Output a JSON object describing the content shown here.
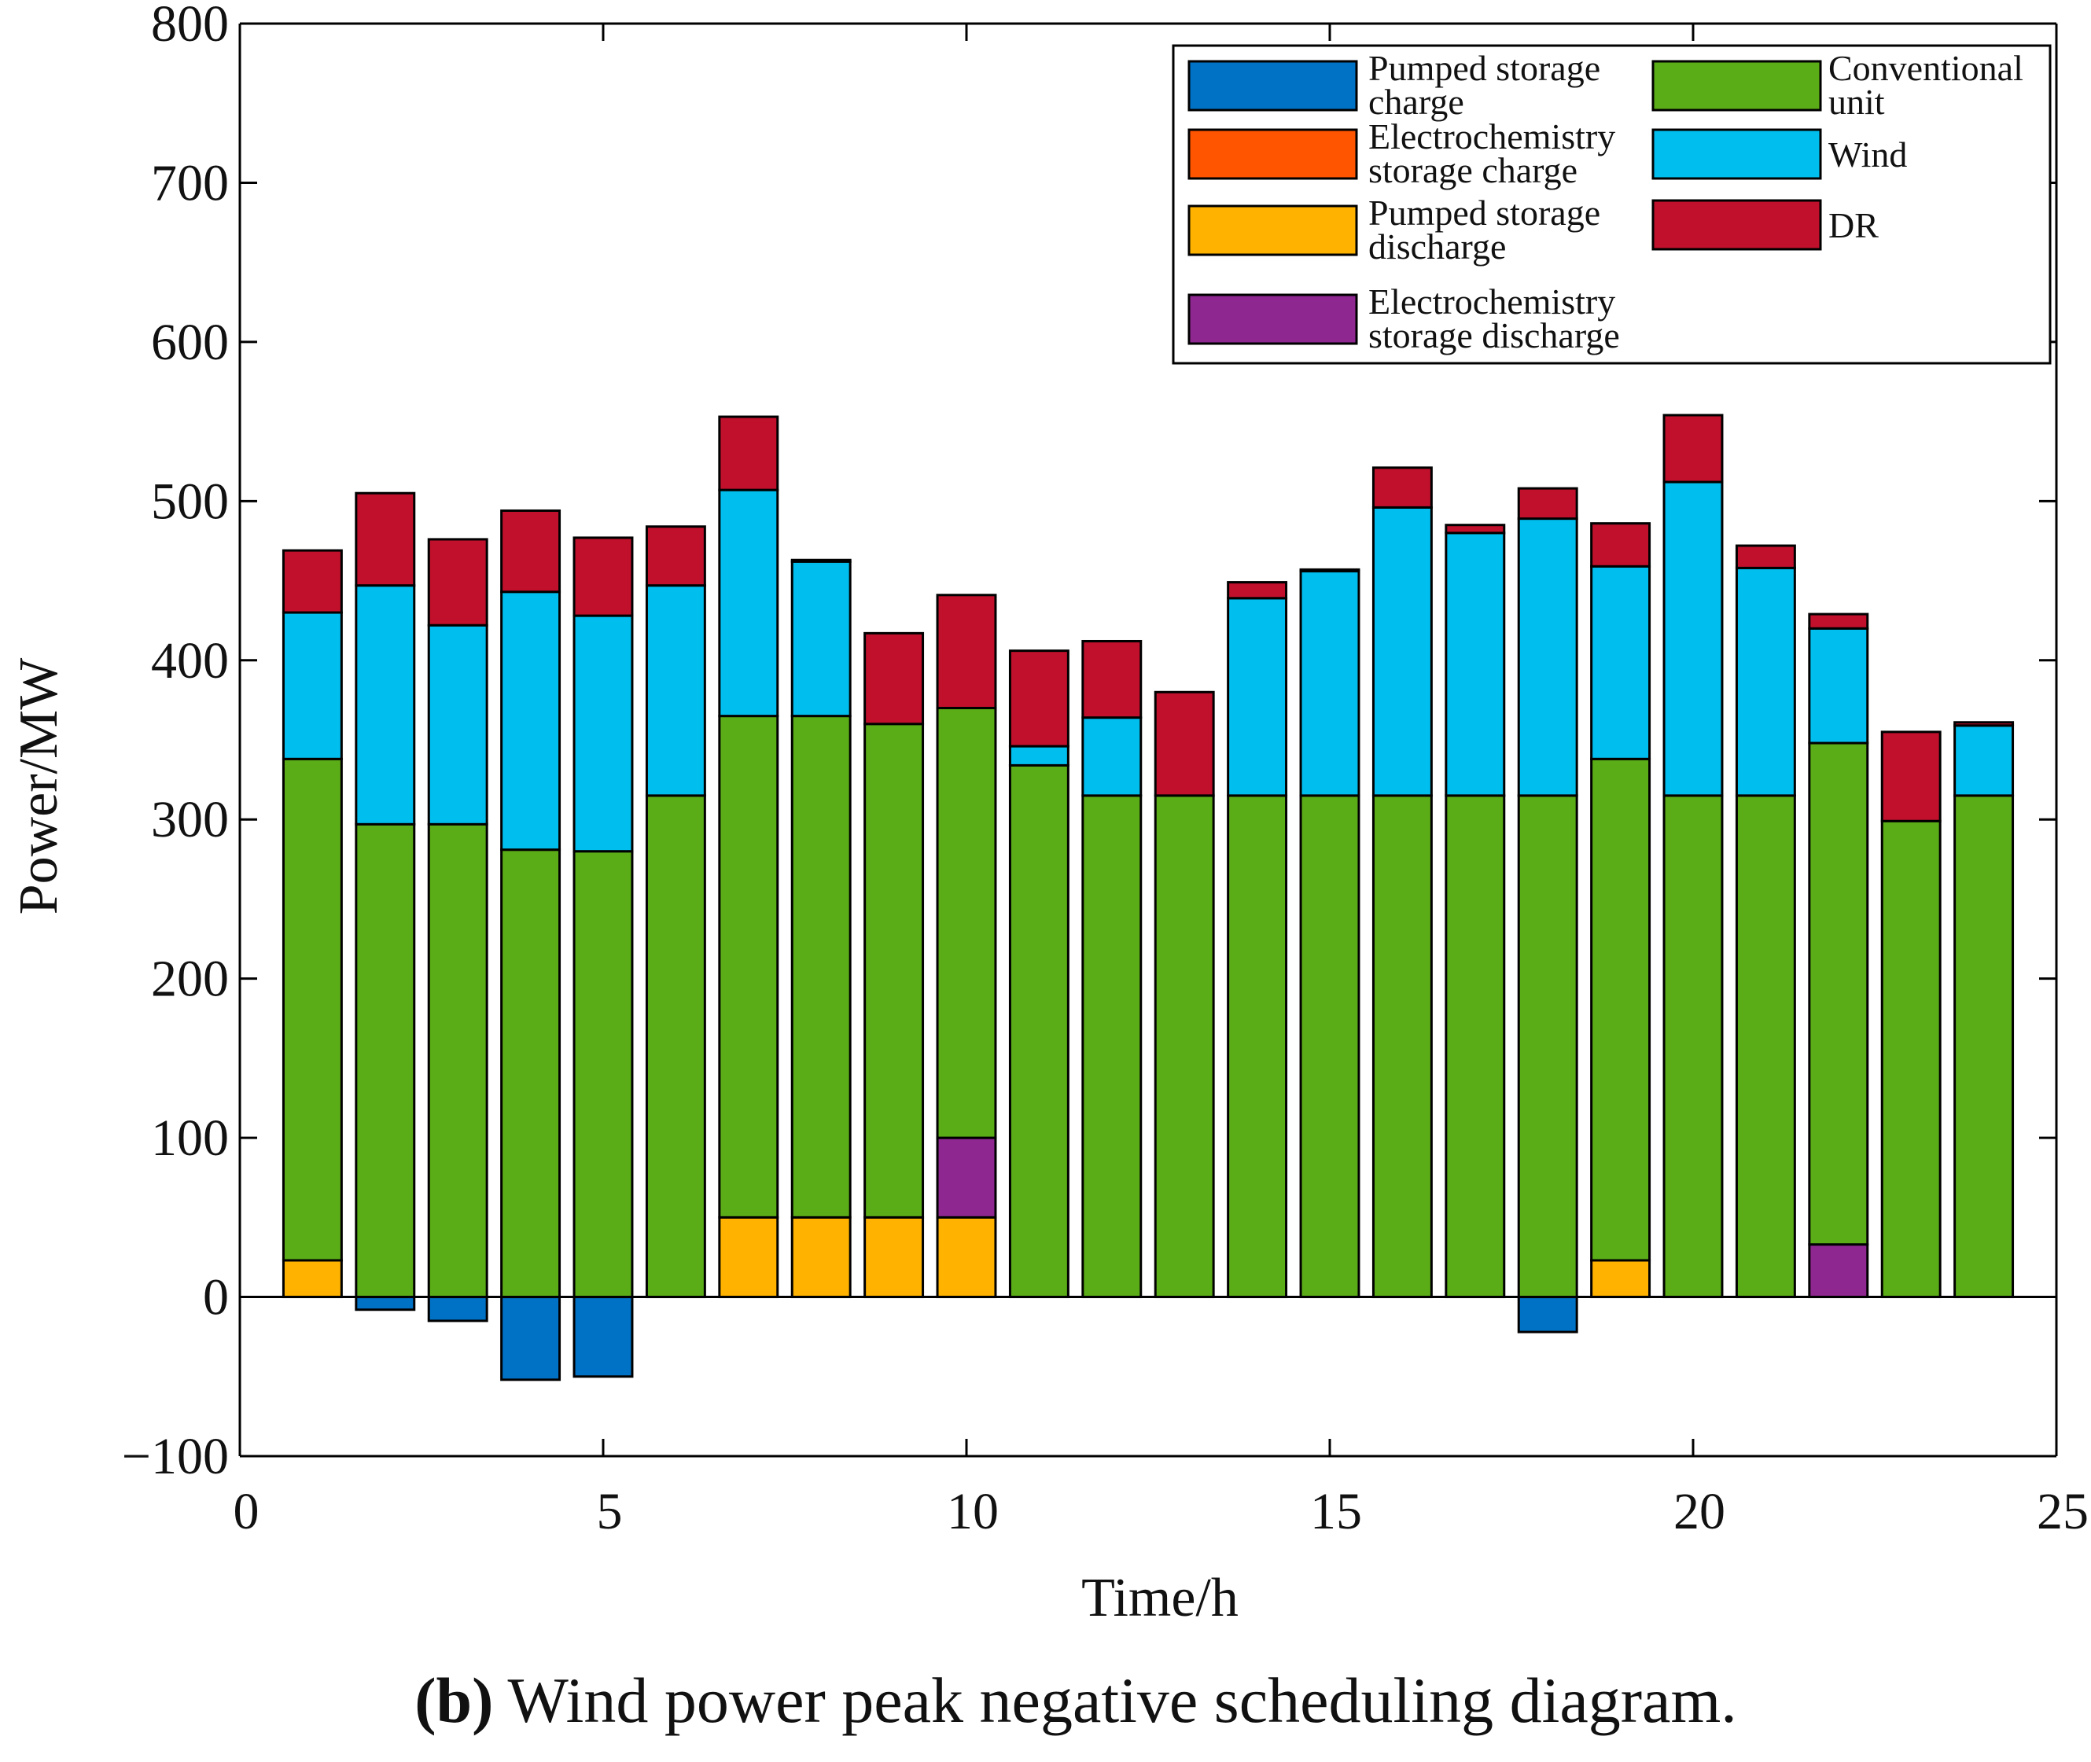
{
  "chart_data": {
    "type": "bar",
    "stacked": true,
    "caption_prefix": "(b)",
    "caption": "Wind power peak negative scheduling diagram.",
    "xlabel": "Time/h",
    "ylabel": "Power/MW",
    "xlim": [
      0,
      25
    ],
    "ylim": [
      -100,
      800
    ],
    "xticks": [
      0,
      5,
      10,
      15,
      20,
      25
    ],
    "yticks": [
      -100,
      0,
      100,
      200,
      300,
      400,
      500,
      600,
      700,
      800
    ],
    "grid": false,
    "legend_position": "top-right",
    "categories": [
      1,
      2,
      3,
      4,
      5,
      6,
      7,
      8,
      9,
      10,
      11,
      12,
      13,
      14,
      15,
      16,
      17,
      18,
      19,
      20,
      21,
      22,
      23,
      24
    ],
    "series": [
      {
        "name": "Pumped storage charge",
        "legend_lines": [
          "Pumped storage",
          "charge"
        ],
        "color": "#0072C6",
        "values": [
          0,
          -8,
          -15,
          -52,
          -50,
          0,
          0,
          0,
          0,
          0,
          0,
          0,
          0,
          0,
          0,
          0,
          0,
          -22,
          0,
          0,
          0,
          0,
          0,
          0
        ]
      },
      {
        "name": "Electrochemistry storage charge",
        "legend_lines": [
          "Electrochemistry",
          "storage charge"
        ],
        "color": "#FF5500",
        "values": [
          0,
          0,
          0,
          0,
          0,
          0,
          0,
          0,
          0,
          0,
          0,
          0,
          0,
          0,
          0,
          0,
          0,
          0,
          0,
          0,
          0,
          0,
          0,
          0
        ]
      },
      {
        "name": "Pumped storage discharge",
        "legend_lines": [
          "Pumped storage",
          "discharge"
        ],
        "color": "#FFB300",
        "values": [
          23,
          0,
          0,
          0,
          0,
          0,
          50,
          50,
          50,
          50,
          0,
          0,
          0,
          0,
          0,
          0,
          0,
          0,
          23,
          0,
          0,
          0,
          0,
          0
        ]
      },
      {
        "name": "Electrochemistry storage discharge",
        "legend_lines": [
          "Electrochemistry",
          "storage discharge"
        ],
        "color": "#8E2890",
        "values": [
          0,
          0,
          0,
          0,
          0,
          0,
          0,
          0,
          0,
          50,
          0,
          0,
          0,
          0,
          0,
          0,
          0,
          0,
          0,
          0,
          0,
          33,
          0,
          0
        ]
      },
      {
        "name": "Conventional unit",
        "legend_lines": [
          "Conventional",
          "unit"
        ],
        "color": "#5BAD18",
        "values": [
          315,
          297,
          297,
          281,
          280,
          315,
          315,
          315,
          310,
          270,
          334,
          315,
          315,
          315,
          315,
          315,
          315,
          315,
          315,
          315,
          315,
          315,
          299,
          315
        ]
      },
      {
        "name": "Wind",
        "legend_lines": [
          "Wind"
        ],
        "color": "#00BFEF",
        "values": [
          92,
          150,
          125,
          162,
          148,
          132,
          142,
          97,
          0,
          0,
          12,
          49,
          0,
          124,
          141,
          181,
          165,
          174,
          121,
          197,
          143,
          72,
          0,
          44
        ]
      },
      {
        "name": "DR",
        "legend_lines": [
          "DR"
        ],
        "color": "#C0102C",
        "values": [
          39,
          58,
          54,
          51,
          49,
          37,
          46,
          1,
          57,
          71,
          60,
          48,
          65,
          10,
          1,
          25,
          5,
          19,
          27,
          42,
          14,
          9,
          56,
          2
        ]
      }
    ]
  }
}
